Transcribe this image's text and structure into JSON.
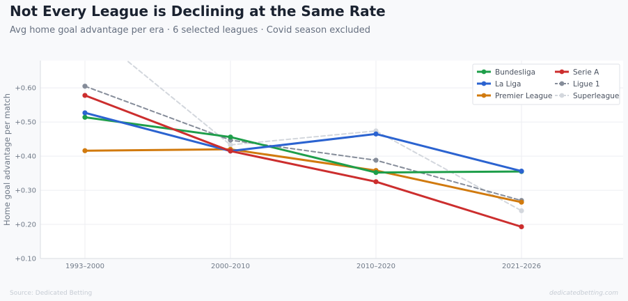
{
  "header": {
    "title": "Not Every League is Declining at the Same Rate",
    "subtitle": "Avg home goal advantage per era · 6 selected leagues · Covid season excluded"
  },
  "footer": {
    "source": "Source: Dedicated Betting",
    "credit": "dedicatedbetting.com"
  },
  "chart_data": {
    "type": "line",
    "categories": [
      "1993–2000",
      "2000–2010",
      "2010–2020",
      "2021–2026"
    ],
    "ylabel": "Home goal advantage per match",
    "ylim": [
      0.1,
      0.68
    ],
    "yticks": [
      0.1,
      0.2,
      0.3,
      0.4,
      0.5,
      0.6
    ],
    "ytick_labels": [
      "+0.10",
      "+0.20",
      "+0.30",
      "+0.40",
      "+0.50",
      "+0.60"
    ],
    "grid": true,
    "legend_position": "top-right",
    "series": [
      {
        "name": "Superleague",
        "values": [
          0.78,
          0.433,
          0.474,
          0.24
        ],
        "color": "#d3d7dd",
        "style": "dashed",
        "width": 2
      },
      {
        "name": "Ligue 1",
        "values": [
          0.605,
          0.447,
          0.388,
          0.27
        ],
        "color": "#858c99",
        "style": "dashed",
        "width": 2
      },
      {
        "name": "Premier League",
        "values": [
          0.416,
          0.42,
          0.358,
          0.265
        ],
        "color": "#d17a0e",
        "style": "solid",
        "width": 3
      },
      {
        "name": "Bundesliga",
        "values": [
          0.514,
          0.456,
          0.352,
          0.355
        ],
        "color": "#1e9e4a",
        "style": "solid",
        "width": 3
      },
      {
        "name": "La Liga",
        "values": [
          0.527,
          0.415,
          0.465,
          0.356
        ],
        "color": "#2b63d0",
        "style": "solid",
        "width": 3
      },
      {
        "name": "Serie A",
        "values": [
          0.578,
          0.415,
          0.325,
          0.193
        ],
        "color": "#cc2e2e",
        "style": "solid",
        "width": 3
      }
    ],
    "legend_order": [
      "Bundesliga",
      "Serie A",
      "La Liga",
      "Ligue 1",
      "Premier League",
      "Superleague"
    ]
  }
}
